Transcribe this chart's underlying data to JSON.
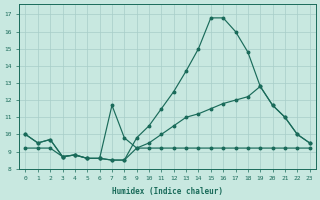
{
  "xlabel": "Humidex (Indice chaleur)",
  "bg_color": "#c8e8e0",
  "grid_color": "#a8cec8",
  "line_color": "#1a6b5a",
  "xlim": [
    -0.5,
    23.5
  ],
  "ylim": [
    8.0,
    17.6
  ],
  "yticks": [
    8,
    9,
    10,
    11,
    12,
    13,
    14,
    15,
    16,
    17
  ],
  "xticks": [
    0,
    1,
    2,
    3,
    4,
    5,
    6,
    7,
    8,
    9,
    10,
    11,
    12,
    13,
    14,
    15,
    16,
    17,
    18,
    19,
    20,
    21,
    22,
    23
  ],
  "line1_x": [
    0,
    1,
    2,
    3,
    4,
    5,
    6,
    7,
    8,
    9,
    10,
    11,
    12,
    13,
    14,
    15,
    16,
    17,
    18,
    19,
    20,
    21,
    22,
    23
  ],
  "line1_y": [
    10.0,
    9.5,
    9.7,
    8.7,
    8.8,
    8.6,
    8.6,
    8.5,
    8.5,
    9.8,
    10.5,
    11.5,
    12.5,
    13.7,
    15.0,
    16.8,
    16.8,
    16.0,
    14.8,
    12.8,
    11.7,
    11.0,
    10.0,
    9.5
  ],
  "line2_x": [
    0,
    1,
    2,
    3,
    4,
    5,
    6,
    7,
    8,
    9,
    10,
    11,
    12,
    13,
    14,
    15,
    16,
    17,
    18,
    19,
    20,
    21,
    22,
    23
  ],
  "line2_y": [
    10.0,
    9.5,
    9.7,
    8.7,
    8.8,
    8.6,
    8.6,
    8.5,
    8.5,
    9.2,
    9.5,
    10.0,
    10.5,
    11.0,
    11.2,
    11.5,
    11.8,
    12.0,
    12.2,
    12.8,
    11.7,
    11.0,
    10.0,
    9.5
  ],
  "line3_x": [
    0,
    1,
    2,
    3,
    4,
    5,
    6,
    7,
    8,
    9,
    10,
    11,
    12,
    13,
    14,
    15,
    16,
    17,
    18,
    19,
    20,
    21,
    22,
    23
  ],
  "line3_y": [
    9.2,
    9.2,
    9.2,
    8.7,
    8.8,
    8.6,
    8.6,
    11.7,
    9.8,
    9.2,
    9.2,
    9.2,
    9.2,
    9.2,
    9.2,
    9.2,
    9.2,
    9.2,
    9.2,
    9.2,
    9.2,
    9.2,
    9.2,
    9.2
  ]
}
